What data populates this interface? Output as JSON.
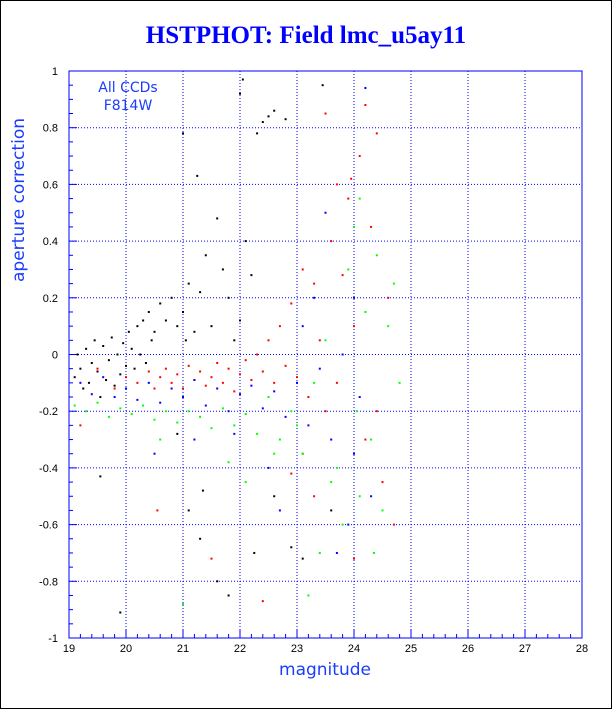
{
  "chart_data": {
    "type": "scatter",
    "title": "HSTPHOT: Field lmc_u5ay11",
    "xlabel": "magnitude",
    "ylabel": "aperture correction",
    "xlim": [
      19,
      28
    ],
    "ylim": [
      -1,
      1
    ],
    "x_ticks": [
      "19",
      "20",
      "21",
      "22",
      "23",
      "24",
      "25",
      "26",
      "27",
      "28"
    ],
    "y_ticks": [
      "-1",
      "-0.8",
      "-0.6",
      "-0.4",
      "-0.2",
      "0",
      "0.2",
      "0.4",
      "0.6",
      "0.8",
      "1"
    ],
    "grid": true,
    "annotations": [
      "All CCDs",
      "F814W"
    ],
    "colors": {
      "title": "#0000ff",
      "axis": "#1a3cff",
      "grid": "#0000ff"
    },
    "series": [
      {
        "color": "#000000",
        "points": [
          [
            19.1,
            -0.08
          ],
          [
            19.15,
            0.0
          ],
          [
            19.2,
            -0.05
          ],
          [
            19.25,
            -0.12
          ],
          [
            19.3,
            0.02
          ],
          [
            19.35,
            -0.1
          ],
          [
            19.4,
            -0.03
          ],
          [
            19.45,
            0.05
          ],
          [
            19.5,
            -0.06
          ],
          [
            19.55,
            -0.15
          ],
          [
            19.6,
            0.03
          ],
          [
            19.65,
            -0.09
          ],
          [
            19.7,
            -0.02
          ],
          [
            19.75,
            0.06
          ],
          [
            19.8,
            -0.11
          ],
          [
            19.85,
            0.0
          ],
          [
            19.9,
            -0.07
          ],
          [
            19.95,
            0.04
          ],
          [
            20.0,
            -0.04
          ],
          [
            20.05,
            0.08
          ],
          [
            20.1,
            0.02
          ],
          [
            20.15,
            -0.05
          ],
          [
            20.2,
            0.1
          ],
          [
            20.25,
            0.0
          ],
          [
            20.3,
            0.12
          ],
          [
            20.35,
            -0.03
          ],
          [
            20.4,
            0.15
          ],
          [
            20.45,
            0.05
          ],
          [
            20.5,
            0.08
          ],
          [
            20.6,
            0.18
          ],
          [
            20.7,
            0.12
          ],
          [
            20.8,
            0.2
          ],
          [
            20.9,
            0.1
          ],
          [
            21.0,
            0.15
          ],
          [
            21.05,
            0.05
          ],
          [
            21.1,
            0.25
          ],
          [
            21.2,
            0.08
          ],
          [
            21.3,
            0.22
          ],
          [
            21.4,
            0.35
          ],
          [
            21.5,
            0.1
          ],
          [
            21.6,
            0.48
          ],
          [
            21.7,
            0.3
          ],
          [
            21.8,
            0.2
          ],
          [
            21.9,
            0.05
          ],
          [
            22.0,
            0.12
          ],
          [
            22.1,
            0.4
          ],
          [
            22.2,
            0.28
          ],
          [
            22.3,
            0.78
          ],
          [
            22.4,
            0.82
          ],
          [
            22.5,
            0.84
          ],
          [
            22.6,
            0.86
          ],
          [
            22.8,
            0.83
          ],
          [
            21.25,
            0.63
          ],
          [
            22.05,
            0.97
          ],
          [
            23.45,
            0.95
          ],
          [
            21.0,
            0.78
          ],
          [
            22.0,
            0.92
          ],
          [
            21.6,
            -0.8
          ],
          [
            21.8,
            -0.85
          ],
          [
            19.9,
            -0.91
          ],
          [
            21.1,
            -0.55
          ],
          [
            19.55,
            -0.43
          ],
          [
            20.9,
            -0.28
          ],
          [
            21.35,
            -0.48
          ],
          [
            22.6,
            -0.5
          ],
          [
            22.9,
            -0.68
          ],
          [
            23.1,
            -0.72
          ],
          [
            23.6,
            -0.55
          ],
          [
            21.3,
            -0.65
          ],
          [
            22.25,
            -0.7
          ]
        ]
      },
      {
        "color": "#ff0000",
        "points": [
          [
            19.2,
            -0.25
          ],
          [
            19.5,
            -0.05
          ],
          [
            19.8,
            -0.12
          ],
          [
            20.0,
            -0.08
          ],
          [
            20.2,
            -0.1
          ],
          [
            20.4,
            -0.06
          ],
          [
            20.5,
            -0.12
          ],
          [
            20.6,
            -0.08
          ],
          [
            20.7,
            -0.05
          ],
          [
            20.8,
            -0.1
          ],
          [
            20.9,
            -0.07
          ],
          [
            21.0,
            -0.12
          ],
          [
            21.1,
            -0.04
          ],
          [
            21.2,
            -0.09
          ],
          [
            21.3,
            -0.06
          ],
          [
            21.4,
            -0.11
          ],
          [
            21.5,
            -0.08
          ],
          [
            21.6,
            -0.03
          ],
          [
            21.7,
            -0.1
          ],
          [
            21.8,
            -0.05
          ],
          [
            21.9,
            -0.13
          ],
          [
            22.0,
            -0.07
          ],
          [
            22.1,
            -0.02
          ],
          [
            22.2,
            -0.09
          ],
          [
            22.3,
            0.0
          ],
          [
            22.4,
            -0.06
          ],
          [
            22.5,
            0.05
          ],
          [
            22.6,
            -0.1
          ],
          [
            22.7,
            0.1
          ],
          [
            22.8,
            -0.04
          ],
          [
            22.9,
            0.18
          ],
          [
            23.0,
            -0.08
          ],
          [
            23.1,
            0.3
          ],
          [
            23.2,
            -0.15
          ],
          [
            23.3,
            0.25
          ],
          [
            23.4,
            0.05
          ],
          [
            23.5,
            -0.2
          ],
          [
            23.6,
            0.4
          ],
          [
            23.7,
            -0.1
          ],
          [
            23.8,
            0.28
          ],
          [
            23.9,
            0.55
          ],
          [
            24.0,
            0.1
          ],
          [
            24.1,
            0.7
          ],
          [
            24.2,
            -0.3
          ],
          [
            24.3,
            0.45
          ],
          [
            24.4,
            0.78
          ],
          [
            24.5,
            -0.45
          ],
          [
            24.6,
            0.2
          ],
          [
            24.7,
            -0.6
          ],
          [
            23.5,
            0.85
          ],
          [
            24.2,
            0.88
          ],
          [
            23.95,
            0.62
          ],
          [
            23.1,
            -0.35
          ],
          [
            23.3,
            -0.5
          ],
          [
            24.0,
            -0.72
          ],
          [
            22.9,
            -0.42
          ],
          [
            22.4,
            -0.87
          ],
          [
            21.5,
            -0.72
          ],
          [
            20.55,
            -0.55
          ],
          [
            24.4,
            -0.2
          ],
          [
            23.7,
            0.6
          ]
        ]
      },
      {
        "color": "#00ff00",
        "points": [
          [
            19.1,
            -0.18
          ],
          [
            19.3,
            -0.2
          ],
          [
            19.5,
            -0.17
          ],
          [
            19.7,
            -0.22
          ],
          [
            19.9,
            -0.19
          ],
          [
            20.1,
            -0.21
          ],
          [
            20.3,
            -0.18
          ],
          [
            20.5,
            -0.23
          ],
          [
            20.7,
            -0.2
          ],
          [
            20.9,
            -0.24
          ],
          [
            21.1,
            -0.2
          ],
          [
            21.3,
            -0.22
          ],
          [
            21.5,
            -0.26
          ],
          [
            21.7,
            -0.19
          ],
          [
            21.9,
            -0.25
          ],
          [
            22.1,
            -0.21
          ],
          [
            22.3,
            -0.28
          ],
          [
            22.5,
            -0.15
          ],
          [
            22.7,
            -0.3
          ],
          [
            22.9,
            -0.2
          ],
          [
            23.1,
            -0.35
          ],
          [
            23.3,
            -0.1
          ],
          [
            23.5,
            0.05
          ],
          [
            23.7,
            -0.4
          ],
          [
            23.9,
            0.3
          ],
          [
            24.0,
            0.45
          ],
          [
            24.1,
            -0.5
          ],
          [
            24.2,
            0.15
          ],
          [
            24.3,
            -0.3
          ],
          [
            24.4,
            0.35
          ],
          [
            24.5,
            -0.55
          ],
          [
            24.6,
            0.1
          ],
          [
            24.1,
            0.55
          ],
          [
            23.8,
            -0.6
          ],
          [
            23.4,
            -0.7
          ],
          [
            23.2,
            -0.85
          ],
          [
            21.0,
            -0.88
          ],
          [
            23.6,
            -0.45
          ],
          [
            24.05,
            -0.2
          ],
          [
            22.1,
            -0.45
          ],
          [
            21.8,
            -0.38
          ],
          [
            20.6,
            -0.3
          ],
          [
            24.8,
            -0.1
          ],
          [
            24.7,
            0.25
          ],
          [
            24.35,
            -0.7
          ],
          [
            23.0,
            -0.25
          ],
          [
            22.6,
            -0.35
          ]
        ]
      },
      {
        "color": "#0000ff",
        "points": [
          [
            19.2,
            -0.1
          ],
          [
            19.4,
            -0.14
          ],
          [
            19.6,
            -0.08
          ],
          [
            19.8,
            -0.15
          ],
          [
            20.0,
            -0.12
          ],
          [
            20.2,
            -0.16
          ],
          [
            20.4,
            -0.1
          ],
          [
            20.6,
            -0.17
          ],
          [
            20.8,
            -0.12
          ],
          [
            21.0,
            -0.15
          ],
          [
            21.2,
            -0.09
          ],
          [
            21.4,
            -0.18
          ],
          [
            21.6,
            -0.12
          ],
          [
            21.8,
            -0.2
          ],
          [
            22.0,
            -0.14
          ],
          [
            22.2,
            -0.11
          ],
          [
            22.4,
            -0.19
          ],
          [
            22.6,
            -0.13
          ],
          [
            22.8,
            -0.22
          ],
          [
            23.0,
            -0.1
          ],
          [
            23.2,
            -0.25
          ],
          [
            23.4,
            -0.05
          ],
          [
            23.6,
            -0.3
          ],
          [
            23.8,
            0.0
          ],
          [
            24.0,
            -0.35
          ],
          [
            24.2,
            0.94
          ],
          [
            23.3,
            0.2
          ],
          [
            23.9,
            -0.6
          ],
          [
            22.5,
            -0.4
          ],
          [
            21.2,
            -0.3
          ],
          [
            24.3,
            -0.5
          ],
          [
            23.1,
            0.1
          ],
          [
            22.7,
            -0.55
          ],
          [
            24.0,
            0.2
          ],
          [
            20.5,
            -0.35
          ],
          [
            21.9,
            -0.28
          ],
          [
            23.7,
            -0.7
          ],
          [
            23.5,
            0.5
          ],
          [
            24.1,
            -0.15
          ]
        ]
      }
    ]
  }
}
